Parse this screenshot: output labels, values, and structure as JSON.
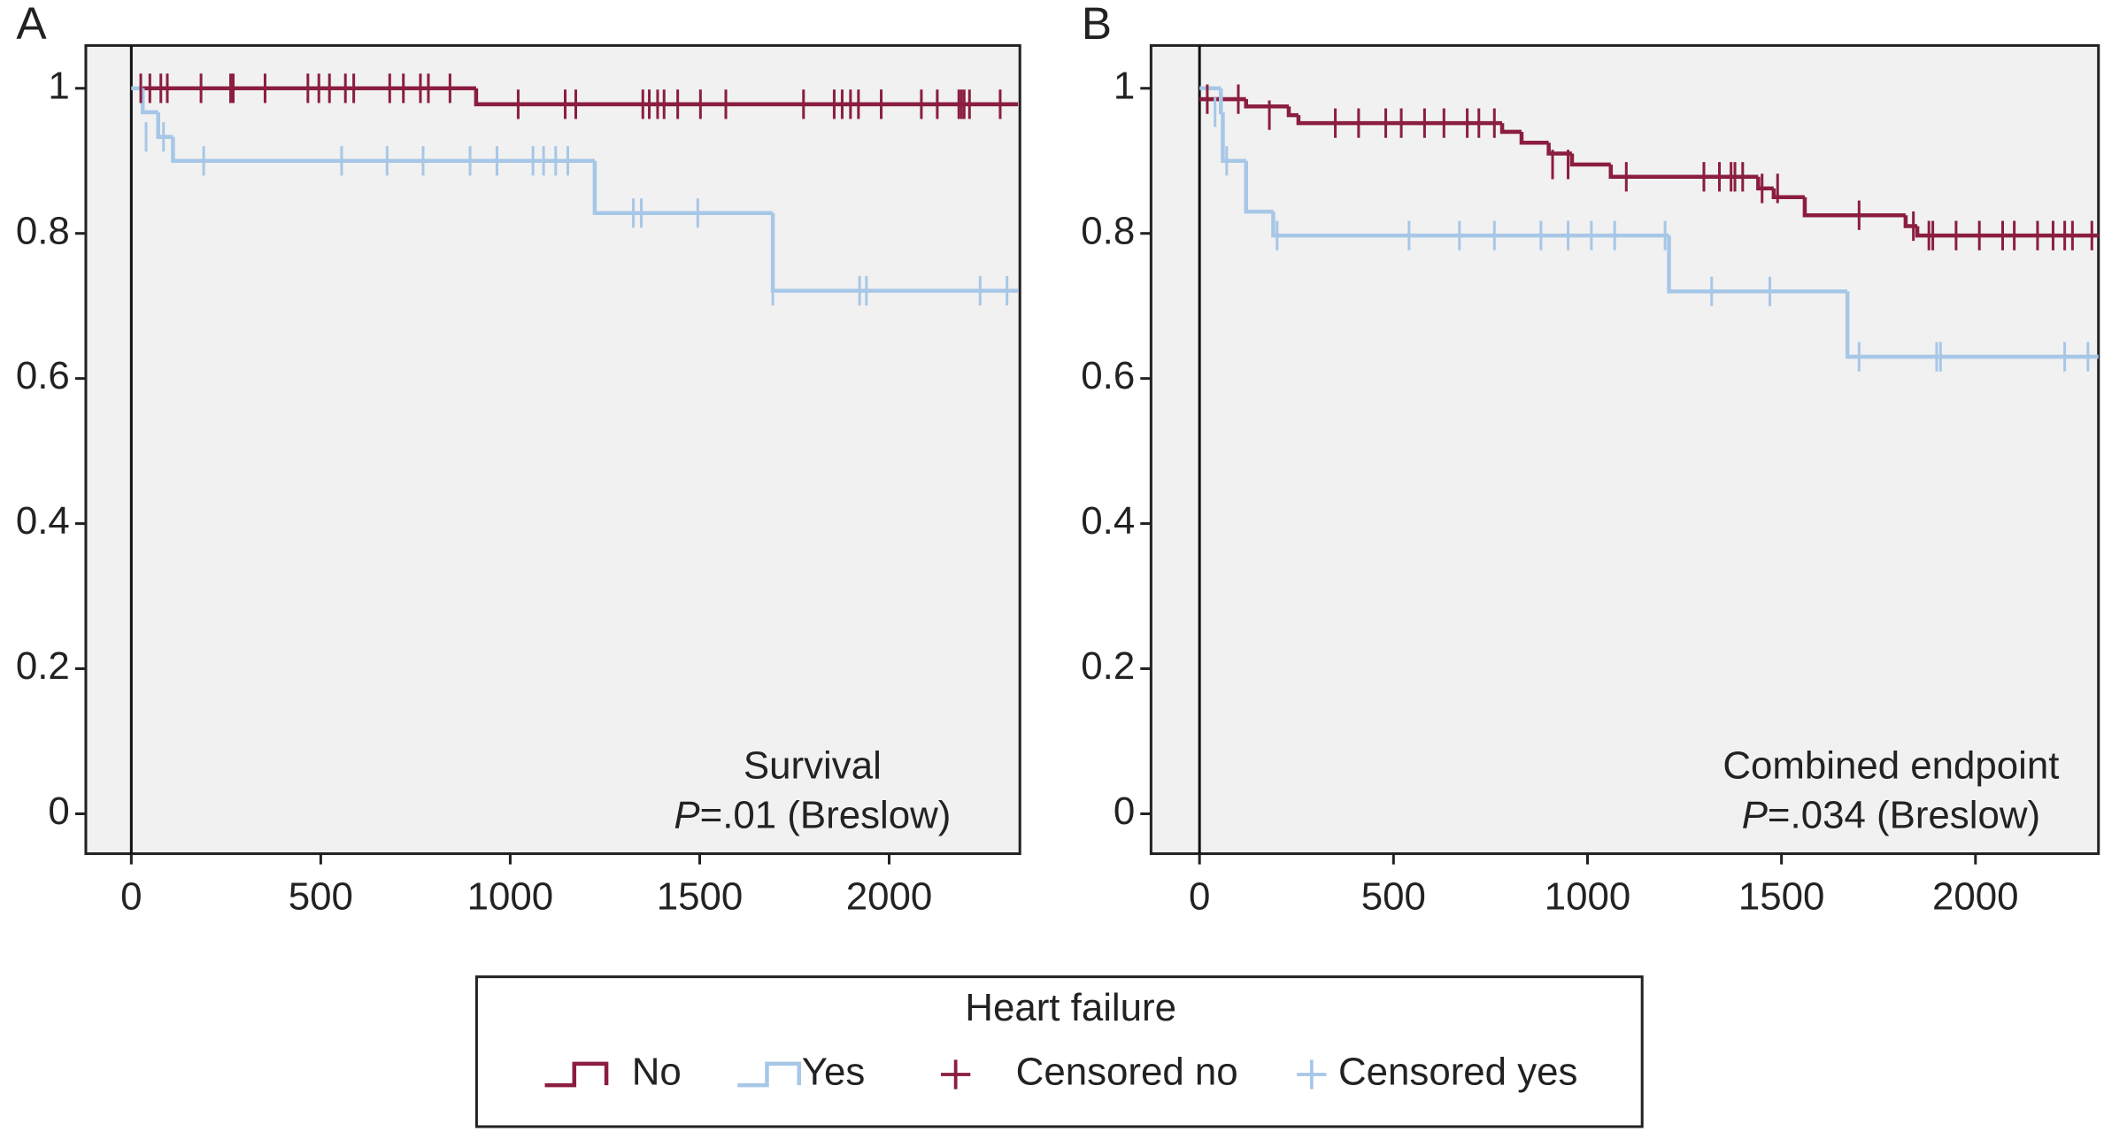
{
  "chart_data": [
    {
      "type": "step",
      "panel": "A",
      "annotation": "Survival",
      "p_symbol": "P",
      "p_text": "=.01 (Breslow)",
      "xlim": [
        -120,
        2345
      ],
      "ylim": [
        -0.055,
        1.059
      ],
      "xticks": [
        0,
        500,
        1000,
        1500,
        2000
      ],
      "yticks": [
        0,
        0.2,
        0.4,
        0.6,
        0.8,
        1
      ],
      "series": [
        {
          "kind": "step",
          "color": "#8b1e3f",
          "x": [
            0,
            910,
            2340
          ],
          "values": [
            1,
            0.978,
            0.978
          ]
        },
        {
          "kind": "step",
          "color": "#a7c7e7",
          "x": [
            0,
            30,
            71,
            110,
            1223,
            1693,
            2340
          ],
          "values": [
            1,
            0.967,
            0.933,
            0.9,
            0.828,
            0.721,
            0.721
          ]
        },
        {
          "kind": "censored",
          "color": "#8b1e3f",
          "x": [
            25,
            49,
            78,
            95,
            184,
            262,
            269,
            353,
            466,
            495,
            523,
            565,
            587,
            682,
            718,
            763,
            784,
            841,
            1021,
            1145,
            1173,
            1350,
            1367,
            1389,
            1406,
            1442,
            1502,
            1569,
            1774,
            1855,
            1876,
            1898,
            1919,
            1979,
            2085,
            2127,
            2184,
            2191,
            2198,
            2212,
            2293
          ],
          "values": [
            1,
            1,
            1,
            1,
            1,
            1,
            1,
            1,
            1,
            1,
            1,
            1,
            1,
            1,
            1,
            1,
            1,
            1,
            0.978,
            0.978,
            0.978,
            0.978,
            0.978,
            0.978,
            0.978,
            0.978,
            0.978,
            0.978,
            0.978,
            0.978,
            0.978,
            0.978,
            0.978,
            0.978,
            0.978,
            0.978,
            0.978,
            0.978,
            0.978,
            0.978,
            0.978
          ]
        },
        {
          "kind": "censored",
          "color": "#a7c7e7",
          "x": [
            39,
            85,
            191,
            555,
            675,
            770,
            894,
            965,
            1060,
            1088,
            1120,
            1152,
            1325,
            1346,
            1495,
            1693,
            1922,
            1940,
            2240,
            2311
          ],
          "values": [
            0.933,
            0.933,
            0.9,
            0.9,
            0.9,
            0.9,
            0.9,
            0.9,
            0.9,
            0.9,
            0.9,
            0.9,
            0.828,
            0.828,
            0.828,
            0.721,
            0.721,
            0.721,
            0.721,
            0.721
          ]
        }
      ]
    },
    {
      "type": "step",
      "panel": "B",
      "annotation": "Combined endpoint",
      "p_symbol": "P",
      "p_text": "=.034 (Breslow)",
      "xlim": [
        -125,
        2317
      ],
      "ylim": [
        -0.055,
        1.059
      ],
      "xticks": [
        0,
        500,
        1000,
        1500,
        2000
      ],
      "yticks": [
        0,
        0.2,
        0.4,
        0.6,
        0.8,
        1
      ],
      "series": [
        {
          "kind": "step",
          "color": "#8b1e3f",
          "x": [
            0,
            120,
            230,
            255,
            780,
            830,
            900,
            960,
            1060,
            1440,
            1480,
            1560,
            1820,
            1850,
            2317
          ],
          "values": [
            0.985,
            0.975,
            0.963,
            0.952,
            0.94,
            0.925,
            0.91,
            0.895,
            0.878,
            0.862,
            0.85,
            0.825,
            0.81,
            0.797,
            0.797
          ]
        },
        {
          "kind": "step",
          "color": "#a7c7e7",
          "x": [
            0,
            55,
            60,
            120,
            190,
            1210,
            1670,
            2317
          ],
          "values": [
            1,
            0.967,
            0.9,
            0.83,
            0.797,
            0.72,
            0.63,
            0.63
          ]
        },
        {
          "kind": "censored",
          "color": "#8b1e3f",
          "x": [
            20,
            100,
            180,
            350,
            410,
            480,
            520,
            580,
            630,
            690,
            720,
            760,
            910,
            950,
            1100,
            1300,
            1340,
            1370,
            1380,
            1400,
            1450,
            1490,
            1700,
            1840,
            1880,
            1890,
            1950,
            2010,
            2070,
            2100,
            2160,
            2200,
            2230,
            2250,
            2300
          ],
          "values": [
            0.985,
            0.985,
            0.963,
            0.952,
            0.952,
            0.952,
            0.952,
            0.952,
            0.952,
            0.952,
            0.952,
            0.952,
            0.895,
            0.895,
            0.878,
            0.878,
            0.878,
            0.878,
            0.878,
            0.878,
            0.862,
            0.862,
            0.825,
            0.81,
            0.797,
            0.797,
            0.797,
            0.797,
            0.797,
            0.797,
            0.797,
            0.797,
            0.797,
            0.797,
            0.797
          ]
        },
        {
          "kind": "censored",
          "color": "#a7c7e7",
          "x": [
            40,
            70,
            200,
            540,
            670,
            760,
            880,
            950,
            1010,
            1070,
            1200,
            1320,
            1470,
            1700,
            1900,
            1910,
            2230,
            2290
          ],
          "values": [
            0.967,
            0.9,
            0.797,
            0.797,
            0.797,
            0.797,
            0.797,
            0.797,
            0.797,
            0.797,
            0.797,
            0.72,
            0.72,
            0.63,
            0.63,
            0.63,
            0.63,
            0.63
          ]
        }
      ]
    }
  ],
  "legend": {
    "title": "Heart failure",
    "entries": [
      {
        "name": "No",
        "marker": "step",
        "color": "#8b1e3f"
      },
      {
        "name": "Yes",
        "marker": "step",
        "color": "#a7c7e7"
      },
      {
        "name": "Censored no",
        "marker": "cross",
        "color": "#8b1e3f"
      },
      {
        "name": "Censored yes",
        "marker": "cross",
        "color": "#a7c7e7"
      }
    ]
  }
}
